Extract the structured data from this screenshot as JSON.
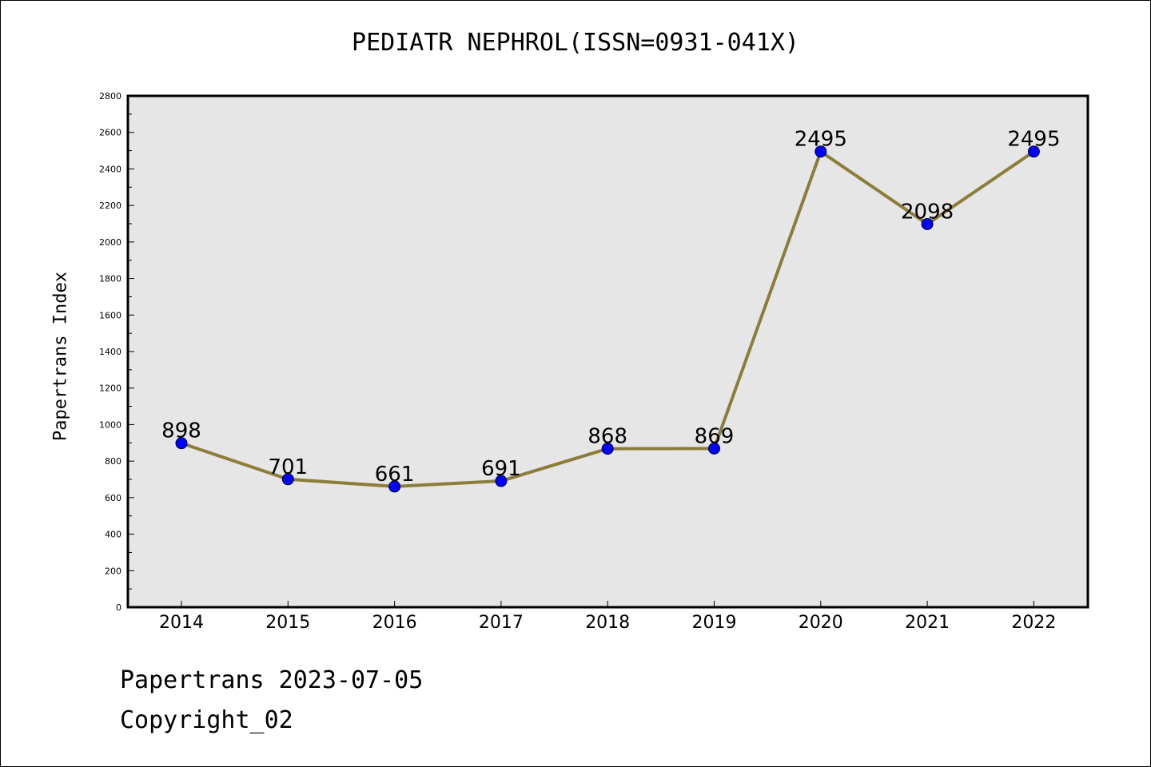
{
  "chart_data": {
    "type": "line",
    "title": "PEDIATR NEPHROL(ISSN=0931-041X)",
    "xlabel": "",
    "ylabel": "Papertrans Index",
    "categories": [
      "2014",
      "2015",
      "2016",
      "2017",
      "2018",
      "2019",
      "2020",
      "2021",
      "2022"
    ],
    "series": [
      {
        "values": [
          898,
          701,
          661,
          691,
          868,
          869,
          2495,
          2098,
          2495
        ]
      }
    ],
    "data_labels": [
      "898",
      "701",
      "661",
      "691",
      "868",
      "869",
      "2495",
      "2098",
      "2495"
    ],
    "ylim": [
      0,
      2800
    ],
    "yticks": [
      "0",
      "200",
      "400",
      "600",
      "800",
      "1000",
      "1200",
      "1400",
      "1600",
      "1800",
      "2000",
      "2200",
      "2400",
      "2600",
      "2800"
    ],
    "grid": false,
    "legend": "none",
    "colors": {
      "line": "#8b7d3a",
      "marker": "#0000ff",
      "plot_background": "#e6e6e6",
      "axes": "#000000"
    }
  },
  "footer": {
    "line1": "Papertrans 2023-07-05",
    "line2": "Copyright_02"
  }
}
